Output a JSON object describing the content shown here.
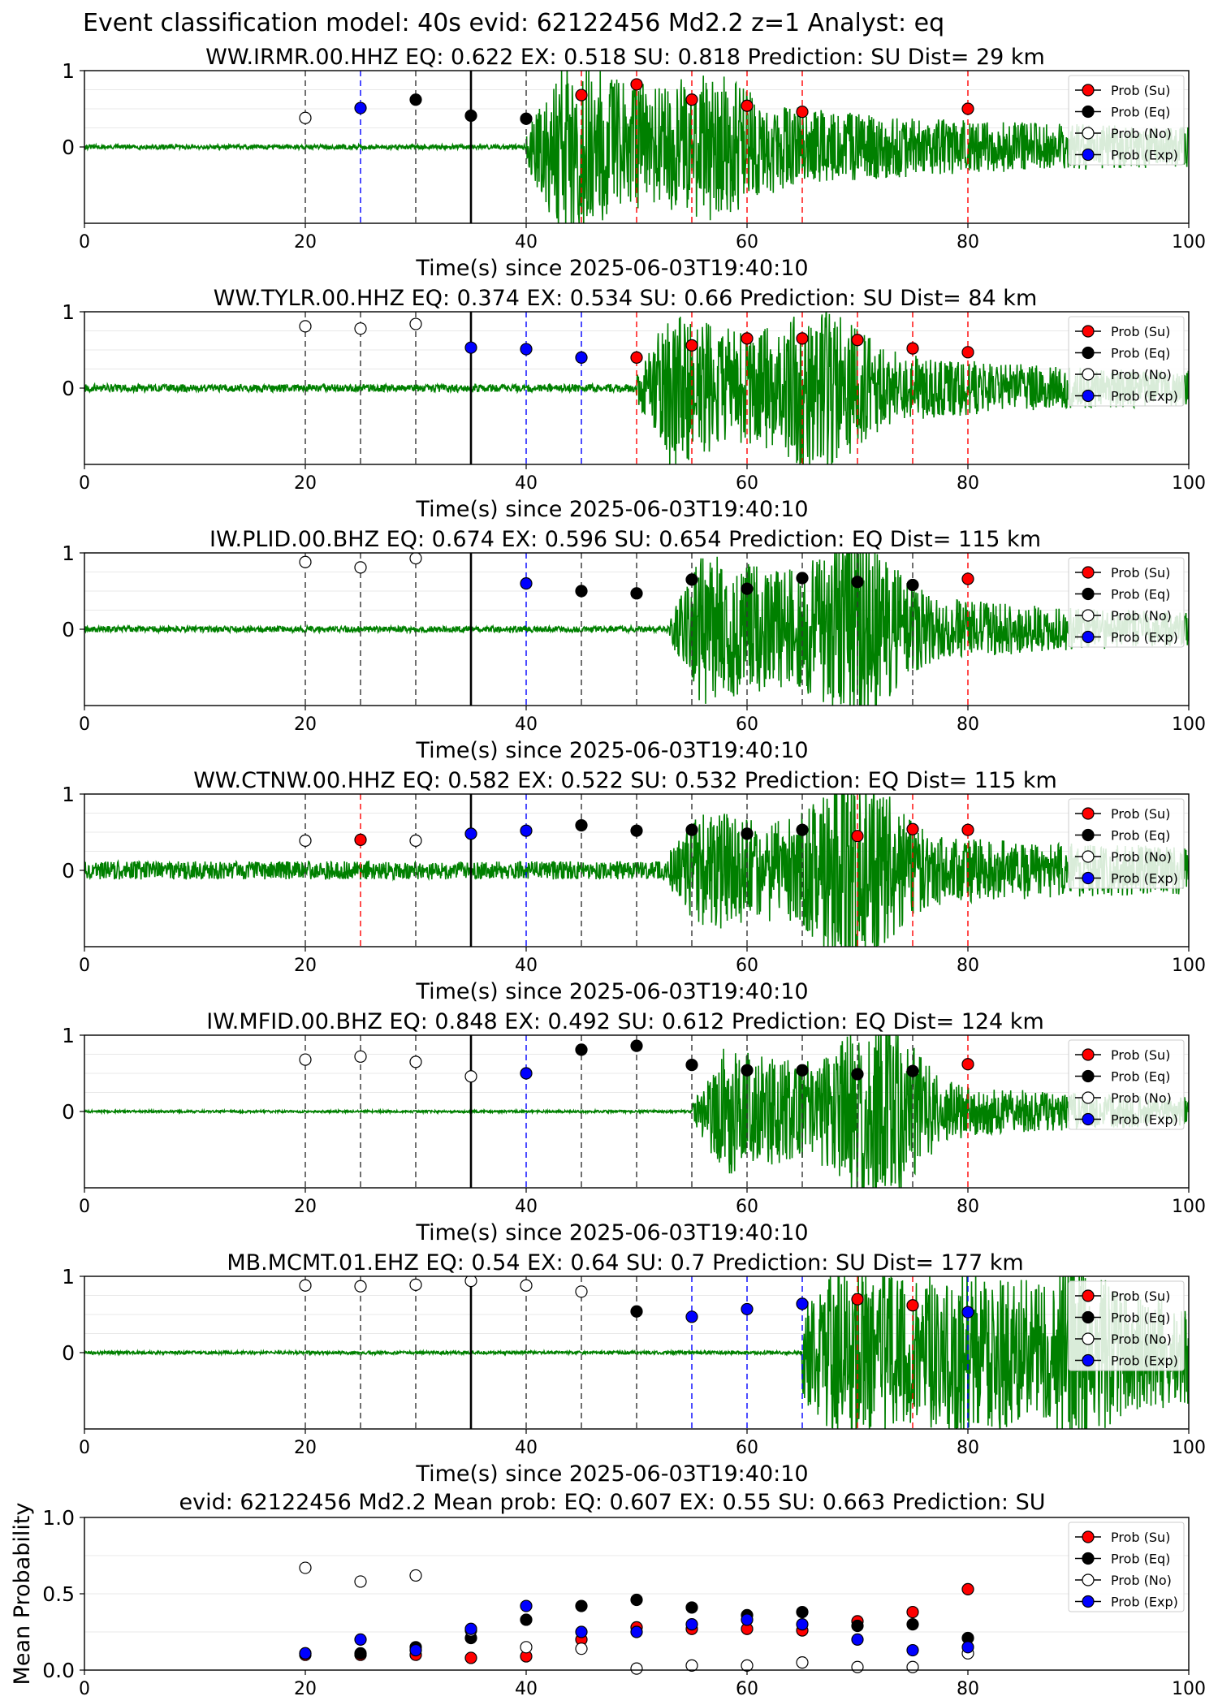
{
  "suptitle": "Event classification model: 40s evid: 62122456 Md2.2 z=1 Analyst: eq",
  "legend": [
    "Prob (Su)",
    "Prob (Eq)",
    "Prob (No)",
    "Prob (Exp)"
  ],
  "colors": {
    "su": "#ff0000",
    "eq": "#000000",
    "no": "#ffffff",
    "exp": "#0000ff",
    "trace": "#008000",
    "trace_light": "#b7dcb7"
  },
  "chart_data": [
    {
      "type": "scatter",
      "subtype": "waveform-with-probabilities",
      "title": "WW.IRMR.00.HHZ   EQ: 0.622  EX: 0.518  SU: 0.818   Prediction: SU    Dist= 29 km",
      "xlabel": "Time(s) since 2025-06-03T19:40:10",
      "ylabel": "",
      "xlim": [
        0,
        100
      ],
      "ylim": [
        -1,
        1
      ],
      "xticks": [
        0,
        20,
        40,
        60,
        80,
        100
      ],
      "yticks": [
        0,
        1
      ],
      "origin_time": 35,
      "onset": 40,
      "env": [
        0.03,
        0.95,
        0.3,
        0.2
      ],
      "trace_end": 100,
      "tail": null,
      "points": [
        {
          "x": 20,
          "y": 0.38,
          "class": "no"
        },
        {
          "x": 25,
          "y": 0.51,
          "class": "exp"
        },
        {
          "x": 30,
          "y": 0.62,
          "class": "eq"
        },
        {
          "x": 35,
          "y": 0.41,
          "class": "eq"
        },
        {
          "x": 40,
          "y": 0.37,
          "class": "eq"
        },
        {
          "x": 45,
          "y": 0.68,
          "class": "su"
        },
        {
          "x": 50,
          "y": 0.82,
          "class": "su"
        },
        {
          "x": 55,
          "y": 0.62,
          "class": "su"
        },
        {
          "x": 60,
          "y": 0.54,
          "class": "su"
        },
        {
          "x": 65,
          "y": 0.46,
          "class": "su"
        },
        {
          "x": 80,
          "y": 0.5,
          "class": "su"
        }
      ]
    },
    {
      "type": "scatter",
      "subtype": "waveform-with-probabilities",
      "title": "WW.TYLR.00.HHZ   EQ: 0.374  EX: 0.534  SU: 0.66   Prediction: SU    Dist= 84 km",
      "xlabel": "Time(s) since 2025-06-03T19:40:10",
      "ylabel": "",
      "xlim": [
        0,
        100
      ],
      "ylim": [
        -1,
        1
      ],
      "xticks": [
        0,
        20,
        40,
        60,
        80,
        100
      ],
      "yticks": [
        0,
        1
      ],
      "origin_time": 35,
      "onset": 50,
      "env": [
        0.05,
        0.85,
        0.55,
        0.12
      ],
      "trace_end": 100,
      "tail": null,
      "points": [
        {
          "x": 20,
          "y": 0.81,
          "class": "no"
        },
        {
          "x": 25,
          "y": 0.78,
          "class": "no"
        },
        {
          "x": 30,
          "y": 0.84,
          "class": "no"
        },
        {
          "x": 35,
          "y": 0.53,
          "class": "exp"
        },
        {
          "x": 40,
          "y": 0.51,
          "class": "exp"
        },
        {
          "x": 45,
          "y": 0.4,
          "class": "exp"
        },
        {
          "x": 50,
          "y": 0.4,
          "class": "su"
        },
        {
          "x": 55,
          "y": 0.56,
          "class": "su"
        },
        {
          "x": 60,
          "y": 0.65,
          "class": "su"
        },
        {
          "x": 65,
          "y": 0.65,
          "class": "su"
        },
        {
          "x": 70,
          "y": 0.63,
          "class": "su"
        },
        {
          "x": 75,
          "y": 0.52,
          "class": "su"
        },
        {
          "x": 80,
          "y": 0.47,
          "class": "su"
        }
      ]
    },
    {
      "type": "scatter",
      "subtype": "waveform-with-probabilities",
      "title": "IW.PLID.00.BHZ   EQ: 0.674  EX: 0.596  SU: 0.654   Prediction: EQ    Dist= 115 km",
      "xlabel": "Time(s) since 2025-06-03T19:40:10",
      "ylabel": "",
      "xlim": [
        0,
        100
      ],
      "ylim": [
        -1,
        1
      ],
      "xticks": [
        0,
        20,
        40,
        60,
        80,
        100
      ],
      "yticks": [
        0,
        1
      ],
      "origin_time": 35,
      "onset": 53,
      "env": [
        0.04,
        0.9,
        0.7,
        0.1
      ],
      "trace_end": 100,
      "tail": null,
      "points": [
        {
          "x": 20,
          "y": 0.88,
          "class": "no"
        },
        {
          "x": 25,
          "y": 0.81,
          "class": "no"
        },
        {
          "x": 30,
          "y": 0.93,
          "class": "no"
        },
        {
          "x": 40,
          "y": 0.6,
          "class": "exp"
        },
        {
          "x": 45,
          "y": 0.5,
          "class": "eq"
        },
        {
          "x": 50,
          "y": 0.47,
          "class": "eq"
        },
        {
          "x": 55,
          "y": 0.65,
          "class": "eq"
        },
        {
          "x": 60,
          "y": 0.53,
          "class": "eq"
        },
        {
          "x": 65,
          "y": 0.67,
          "class": "eq"
        },
        {
          "x": 70,
          "y": 0.62,
          "class": "eq"
        },
        {
          "x": 75,
          "y": 0.58,
          "class": "eq"
        },
        {
          "x": 80,
          "y": 0.66,
          "class": "su"
        }
      ]
    },
    {
      "type": "scatter",
      "subtype": "waveform-with-probabilities",
      "title": "WW.CTNW.00.HHZ   EQ: 0.582  EX: 0.522  SU: 0.532   Prediction: EQ    Dist= 115 km",
      "xlabel": "Time(s) since 2025-06-03T19:40:10",
      "ylabel": "",
      "xlim": [
        0,
        100
      ],
      "ylim": [
        -1,
        1
      ],
      "xticks": [
        0,
        20,
        40,
        60,
        80,
        100
      ],
      "yticks": [
        0,
        1
      ],
      "origin_time": 35,
      "onset": 53,
      "env": [
        0.12,
        0.55,
        0.85,
        0.15
      ],
      "trace_end": 100,
      "tail": null,
      "points": [
        {
          "x": 20,
          "y": 0.39,
          "class": "no"
        },
        {
          "x": 25,
          "y": 0.4,
          "class": "su"
        },
        {
          "x": 30,
          "y": 0.39,
          "class": "no"
        },
        {
          "x": 35,
          "y": 0.48,
          "class": "exp"
        },
        {
          "x": 40,
          "y": 0.52,
          "class": "exp"
        },
        {
          "x": 45,
          "y": 0.59,
          "class": "eq"
        },
        {
          "x": 50,
          "y": 0.52,
          "class": "eq"
        },
        {
          "x": 55,
          "y": 0.53,
          "class": "eq"
        },
        {
          "x": 60,
          "y": 0.48,
          "class": "eq"
        },
        {
          "x": 65,
          "y": 0.53,
          "class": "eq"
        },
        {
          "x": 70,
          "y": 0.45,
          "class": "su"
        },
        {
          "x": 75,
          "y": 0.54,
          "class": "su"
        },
        {
          "x": 80,
          "y": 0.53,
          "class": "su"
        }
      ]
    },
    {
      "type": "scatter",
      "subtype": "waveform-with-probabilities",
      "title": "IW.MFID.00.BHZ   EQ: 0.848  EX: 0.492  SU: 0.612   Prediction: EQ    Dist= 124 km",
      "xlabel": "Time(s) since 2025-06-03T19:40:10",
      "ylabel": "",
      "xlim": [
        0,
        100
      ],
      "ylim": [
        -1,
        1
      ],
      "xticks": [
        0,
        20,
        40,
        60,
        80,
        100
      ],
      "yticks": [
        0,
        1
      ],
      "origin_time": 35,
      "onset": 55,
      "env": [
        0.015,
        0.75,
        0.8,
        0.1
      ],
      "trace_end": 100,
      "tail": null,
      "points": [
        {
          "x": 20,
          "y": 0.68,
          "class": "no"
        },
        {
          "x": 25,
          "y": 0.72,
          "class": "no"
        },
        {
          "x": 30,
          "y": 0.65,
          "class": "no"
        },
        {
          "x": 35,
          "y": 0.46,
          "class": "no"
        },
        {
          "x": 40,
          "y": 0.5,
          "class": "exp"
        },
        {
          "x": 45,
          "y": 0.81,
          "class": "eq"
        },
        {
          "x": 50,
          "y": 0.86,
          "class": "eq"
        },
        {
          "x": 55,
          "y": 0.61,
          "class": "eq"
        },
        {
          "x": 60,
          "y": 0.54,
          "class": "eq"
        },
        {
          "x": 65,
          "y": 0.54,
          "class": "eq"
        },
        {
          "x": 70,
          "y": 0.49,
          "class": "eq"
        },
        {
          "x": 75,
          "y": 0.53,
          "class": "eq"
        },
        {
          "x": 80,
          "y": 0.62,
          "class": "su"
        }
      ]
    },
    {
      "type": "scatter",
      "subtype": "waveform-with-probabilities",
      "title": "MB.MCMT.01.EHZ   EQ: 0.54  EX: 0.64  SU: 0.7   Prediction: SU    Dist= 177 km",
      "xlabel": "Time(s) since 2025-06-03T19:40:10",
      "ylabel": "",
      "xlim": [
        0,
        100
      ],
      "ylim": [
        -1,
        1
      ],
      "xticks": [
        0,
        20,
        40,
        60,
        80,
        100
      ],
      "yticks": [
        0,
        1
      ],
      "origin_time": 35,
      "onset": 65,
      "env": [
        0.02,
        0.6,
        0.2,
        0.6
      ],
      "trace_end": 100,
      "tail": 88,
      "points": [
        {
          "x": 20,
          "y": 0.88,
          "class": "no"
        },
        {
          "x": 25,
          "y": 0.87,
          "class": "no"
        },
        {
          "x": 30,
          "y": 0.89,
          "class": "no"
        },
        {
          "x": 35,
          "y": 0.94,
          "class": "no"
        },
        {
          "x": 40,
          "y": 0.88,
          "class": "no"
        },
        {
          "x": 45,
          "y": 0.8,
          "class": "no"
        },
        {
          "x": 50,
          "y": 0.54,
          "class": "eq"
        },
        {
          "x": 55,
          "y": 0.47,
          "class": "exp"
        },
        {
          "x": 60,
          "y": 0.57,
          "class": "exp"
        },
        {
          "x": 65,
          "y": 0.64,
          "class": "exp"
        },
        {
          "x": 70,
          "y": 0.7,
          "class": "su"
        },
        {
          "x": 75,
          "y": 0.62,
          "class": "su"
        },
        {
          "x": 80,
          "y": 0.53,
          "class": "exp"
        }
      ]
    },
    {
      "type": "scatter",
      "subtype": "mean-probability",
      "title": "evid: 62122456  Md2.2   Mean prob:   EQ: 0.607  EX: 0.55  SU: 0.663   Prediction: SU",
      "xlabel": "",
      "ylabel": "Mean Probability",
      "xlim": [
        0,
        100
      ],
      "ylim": [
        0,
        1
      ],
      "xticks": [
        0,
        20,
        40,
        60,
        80,
        100
      ],
      "yticks": [
        0.0,
        0.5,
        1.0
      ],
      "series": [
        {
          "class": "su",
          "x": [
            20,
            25,
            30,
            35,
            40,
            45,
            50,
            55,
            60,
            65,
            70,
            75,
            80
          ],
          "values": [
            0.1,
            0.1,
            0.1,
            0.08,
            0.09,
            0.2,
            0.28,
            0.27,
            0.27,
            0.26,
            0.32,
            0.38,
            0.53
          ]
        },
        {
          "class": "eq",
          "x": [
            20,
            25,
            30,
            35,
            40,
            45,
            50,
            55,
            60,
            65,
            70,
            75,
            80
          ],
          "values": [
            0.11,
            0.11,
            0.15,
            0.21,
            0.33,
            0.42,
            0.46,
            0.41,
            0.36,
            0.38,
            0.29,
            0.3,
            0.21
          ]
        },
        {
          "class": "no",
          "x": [
            20,
            25,
            30,
            35,
            40,
            45,
            50,
            55,
            60,
            65,
            70,
            75,
            80
          ],
          "values": [
            0.67,
            0.58,
            0.62,
            0.26,
            0.15,
            0.14,
            0.01,
            0.03,
            0.03,
            0.05,
            0.02,
            0.02,
            0.11
          ]
        },
        {
          "class": "exp",
          "x": [
            20,
            25,
            30,
            35,
            40,
            45,
            50,
            55,
            60,
            65,
            70,
            75,
            80
          ],
          "values": [
            0.11,
            0.2,
            0.13,
            0.27,
            0.42,
            0.25,
            0.25,
            0.3,
            0.33,
            0.3,
            0.2,
            0.13,
            0.15
          ]
        }
      ]
    }
  ]
}
